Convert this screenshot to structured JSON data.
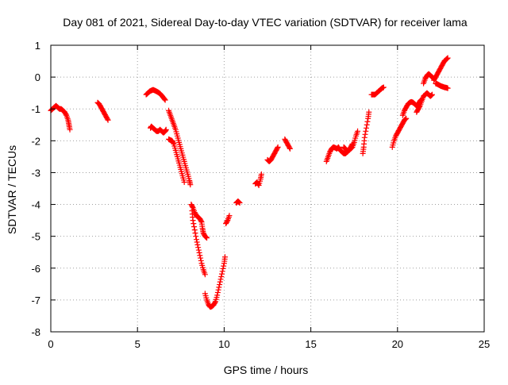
{
  "chart_data": {
    "type": "scatter",
    "title": "Day 081 of 2021, Sidereal Day-to-day VTEC variation (SDTVAR) for receiver lama",
    "xlabel": "GPS time / hours",
    "ylabel": "SDTVAR / TECUs",
    "xlim": [
      0,
      25
    ],
    "ylim": [
      -8,
      1
    ],
    "xticks": [
      0,
      5,
      10,
      15,
      20,
      25
    ],
    "yticks": [
      -8,
      -7,
      -6,
      -5,
      -4,
      -3,
      -2,
      -1,
      0,
      1
    ],
    "grid": true,
    "legend": "none",
    "marker": "plus",
    "series_color": "#ff0000",
    "series": [
      {
        "segments": [
          [
            [
              0.0,
              -1.05
            ],
            [
              0.1,
              -1.0
            ],
            [
              0.2,
              -0.95
            ],
            [
              0.3,
              -0.9
            ],
            [
              0.4,
              -0.95
            ],
            [
              0.5,
              -1.0
            ],
            [
              0.6,
              -1.0
            ],
            [
              0.7,
              -1.05
            ],
            [
              0.8,
              -1.1
            ],
            [
              0.9,
              -1.2
            ],
            [
              1.0,
              -1.35
            ],
            [
              1.05,
              -1.5
            ],
            [
              1.1,
              -1.65
            ]
          ],
          [
            [
              2.7,
              -0.8
            ],
            [
              2.8,
              -0.85
            ],
            [
              2.9,
              -0.95
            ],
            [
              3.0,
              -1.05
            ],
            [
              3.1,
              -1.15
            ],
            [
              3.2,
              -1.25
            ],
            [
              3.3,
              -1.35
            ]
          ],
          [
            [
              5.5,
              -0.55
            ],
            [
              5.6,
              -0.5
            ],
            [
              5.7,
              -0.45
            ],
            [
              5.8,
              -0.42
            ],
            [
              5.9,
              -0.4
            ],
            [
              6.0,
              -0.42
            ],
            [
              6.1,
              -0.45
            ],
            [
              6.2,
              -0.48
            ],
            [
              6.3,
              -0.52
            ],
            [
              6.4,
              -0.58
            ],
            [
              6.5,
              -0.65
            ],
            [
              6.6,
              -0.72
            ]
          ],
          [
            [
              5.75,
              -1.6
            ],
            [
              5.8,
              -1.55
            ],
            [
              5.9,
              -1.6
            ],
            [
              6.0,
              -1.65
            ],
            [
              6.1,
              -1.7
            ],
            [
              6.2,
              -1.7
            ],
            [
              6.3,
              -1.65
            ],
            [
              6.4,
              -1.7
            ],
            [
              6.5,
              -1.75
            ],
            [
              6.6,
              -1.7
            ],
            [
              6.65,
              -1.65
            ]
          ],
          [
            [
              6.8,
              -1.05
            ],
            [
              6.9,
              -1.2
            ],
            [
              7.0,
              -1.35
            ],
            [
              7.1,
              -1.5
            ],
            [
              7.2,
              -1.65
            ],
            [
              7.3,
              -1.85
            ],
            [
              7.4,
              -2.05
            ],
            [
              7.5,
              -2.25
            ],
            [
              7.6,
              -2.45
            ],
            [
              7.7,
              -2.65
            ],
            [
              7.8,
              -2.85
            ],
            [
              7.9,
              -3.05
            ],
            [
              8.0,
              -3.25
            ],
            [
              8.05,
              -3.38
            ]
          ],
          [
            [
              6.8,
              -1.95
            ],
            [
              6.9,
              -1.98
            ],
            [
              7.0,
              -2.0
            ],
            [
              7.1,
              -2.1
            ],
            [
              7.2,
              -2.3
            ],
            [
              7.3,
              -2.5
            ],
            [
              7.4,
              -2.7
            ],
            [
              7.5,
              -2.9
            ],
            [
              7.6,
              -3.1
            ],
            [
              7.7,
              -3.3
            ]
          ],
          [
            [
              8.1,
              -4.0
            ],
            [
              8.2,
              -4.1
            ],
            [
              8.3,
              -4.25
            ],
            [
              8.4,
              -4.35
            ],
            [
              8.5,
              -4.4
            ],
            [
              8.6,
              -4.45
            ],
            [
              8.7,
              -4.55
            ],
            [
              8.75,
              -4.75
            ],
            [
              8.8,
              -4.9
            ],
            [
              8.9,
              -5.0
            ],
            [
              9.0,
              -5.05
            ]
          ],
          [
            [
              8.15,
              -4.2
            ],
            [
              8.2,
              -4.5
            ],
            [
              8.3,
              -4.8
            ],
            [
              8.4,
              -5.1
            ],
            [
              8.5,
              -5.35
            ],
            [
              8.6,
              -5.6
            ],
            [
              8.7,
              -5.85
            ],
            [
              8.8,
              -6.05
            ],
            [
              8.9,
              -6.2
            ]
          ],
          [
            [
              8.9,
              -6.8
            ],
            [
              9.0,
              -7.0
            ],
            [
              9.1,
              -7.15
            ],
            [
              9.2,
              -7.22
            ],
            [
              9.3,
              -7.2
            ],
            [
              9.4,
              -7.15
            ],
            [
              9.5,
              -7.05
            ],
            [
              9.6,
              -6.85
            ],
            [
              9.7,
              -6.6
            ],
            [
              9.8,
              -6.35
            ],
            [
              9.9,
              -6.1
            ],
            [
              10.0,
              -5.85
            ],
            [
              10.05,
              -5.65
            ]
          ],
          [
            [
              10.1,
              -4.6
            ],
            [
              10.2,
              -4.5
            ],
            [
              10.3,
              -4.35
            ]
          ],
          [
            [
              10.7,
              -3.95
            ],
            [
              10.8,
              -3.9
            ],
            [
              10.9,
              -3.95
            ]
          ],
          [
            [
              11.8,
              -3.35
            ],
            [
              11.9,
              -3.3
            ],
            [
              12.0,
              -3.4
            ],
            [
              12.1,
              -3.2
            ],
            [
              12.15,
              -3.05
            ]
          ],
          [
            [
              12.5,
              -2.6
            ],
            [
              12.6,
              -2.65
            ],
            [
              12.7,
              -2.6
            ],
            [
              12.8,
              -2.5
            ],
            [
              12.9,
              -2.4
            ],
            [
              13.0,
              -2.3
            ],
            [
              13.1,
              -2.2
            ]
          ],
          [
            [
              13.5,
              -1.95
            ],
            [
              13.6,
              -2.05
            ],
            [
              13.7,
              -2.15
            ],
            [
              13.8,
              -2.25
            ]
          ],
          [
            [
              15.9,
              -2.65
            ],
            [
              16.0,
              -2.5
            ],
            [
              16.1,
              -2.35
            ],
            [
              16.2,
              -2.25
            ],
            [
              16.3,
              -2.2
            ],
            [
              16.4,
              -2.22
            ],
            [
              16.5,
              -2.25
            ],
            [
              16.6,
              -2.2
            ],
            [
              16.7,
              -2.3
            ],
            [
              16.8,
              -2.35
            ],
            [
              16.9,
              -2.4
            ],
            [
              17.0,
              -2.4
            ],
            [
              17.1,
              -2.35
            ],
            [
              17.2,
              -2.3
            ],
            [
              17.3,
              -2.25
            ],
            [
              17.4,
              -2.2
            ],
            [
              17.5,
              -2.05
            ],
            [
              17.6,
              -1.85
            ],
            [
              17.7,
              -1.7
            ]
          ],
          [
            [
              16.9,
              -2.2
            ],
            [
              17.0,
              -2.25
            ],
            [
              17.1,
              -2.35
            ],
            [
              17.2,
              -2.3
            ],
            [
              17.3,
              -2.2
            ],
            [
              17.4,
              -2.1
            ]
          ],
          [
            [
              18.0,
              -2.4
            ],
            [
              18.05,
              -2.2
            ],
            [
              18.1,
              -1.9
            ],
            [
              18.2,
              -1.6
            ],
            [
              18.3,
              -1.3
            ],
            [
              18.35,
              -1.1
            ]
          ],
          [
            [
              18.5,
              -0.55
            ],
            [
              18.6,
              -0.55
            ],
            [
              18.7,
              -0.55
            ],
            [
              18.8,
              -0.5
            ],
            [
              18.9,
              -0.45
            ],
            [
              19.0,
              -0.4
            ],
            [
              19.1,
              -0.35
            ],
            [
              19.2,
              -0.32
            ]
          ],
          [
            [
              19.7,
              -2.2
            ],
            [
              19.8,
              -2.0
            ],
            [
              19.9,
              -1.85
            ],
            [
              20.0,
              -1.75
            ],
            [
              20.1,
              -1.65
            ],
            [
              20.2,
              -1.55
            ],
            [
              20.3,
              -1.45
            ],
            [
              20.4,
              -1.35
            ],
            [
              20.5,
              -1.3
            ]
          ],
          [
            [
              20.3,
              -1.2
            ],
            [
              20.4,
              -1.05
            ],
            [
              20.5,
              -0.95
            ],
            [
              20.6,
              -0.85
            ],
            [
              20.7,
              -0.8
            ],
            [
              20.8,
              -0.78
            ],
            [
              20.9,
              -0.8
            ],
            [
              21.0,
              -0.85
            ],
            [
              21.1,
              -0.9
            ],
            [
              21.2,
              -0.85
            ],
            [
              21.3,
              -0.75
            ],
            [
              21.4,
              -0.7
            ]
          ],
          [
            [
              21.1,
              -1.1
            ],
            [
              21.2,
              -1.0
            ],
            [
              21.3,
              -0.9
            ],
            [
              21.4,
              -0.75
            ],
            [
              21.5,
              -0.6
            ],
            [
              21.6,
              -0.55
            ],
            [
              21.7,
              -0.5
            ],
            [
              21.8,
              -0.55
            ],
            [
              21.9,
              -0.6
            ],
            [
              22.0,
              -0.55
            ]
          ],
          [
            [
              21.5,
              -0.2
            ],
            [
              21.6,
              -0.05
            ],
            [
              21.7,
              0.05
            ],
            [
              21.8,
              0.1
            ],
            [
              21.9,
              0.05
            ],
            [
              22.0,
              0.0
            ],
            [
              22.1,
              -0.05
            ]
          ],
          [
            [
              22.1,
              -0.1
            ],
            [
              22.2,
              0.0
            ],
            [
              22.3,
              0.1
            ],
            [
              22.4,
              0.2
            ],
            [
              22.5,
              0.3
            ],
            [
              22.6,
              0.4
            ],
            [
              22.7,
              0.5
            ],
            [
              22.8,
              0.55
            ],
            [
              22.9,
              0.6
            ]
          ],
          [
            [
              22.2,
              -0.2
            ],
            [
              22.3,
              -0.22
            ],
            [
              22.4,
              -0.25
            ],
            [
              22.5,
              -0.28
            ],
            [
              22.6,
              -0.3
            ],
            [
              22.7,
              -0.32
            ],
            [
              22.8,
              -0.33
            ],
            [
              22.9,
              -0.35
            ]
          ]
        ]
      }
    ]
  }
}
